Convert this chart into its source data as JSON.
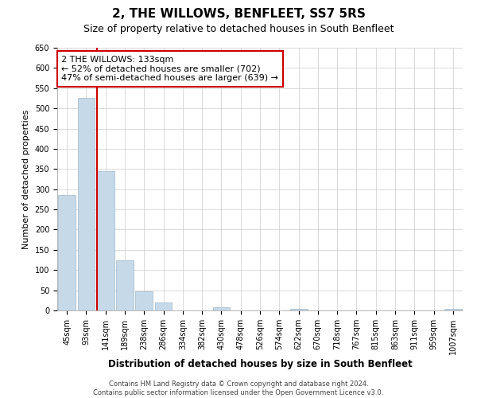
{
  "title": "2, THE WILLOWS, BENFLEET, SS7 5RS",
  "subtitle": "Size of property relative to detached houses in South Benfleet",
  "xlabel": "Distribution of detached houses by size in South Benfleet",
  "ylabel": "Number of detached properties",
  "footer_line1": "Contains HM Land Registry data © Crown copyright and database right 2024.",
  "footer_line2": "Contains public sector information licensed under the Open Government Licence v3.0.",
  "bar_labels": [
    "45sqm",
    "93sqm",
    "141sqm",
    "189sqm",
    "238sqm",
    "286sqm",
    "334sqm",
    "382sqm",
    "430sqm",
    "478sqm",
    "526sqm",
    "574sqm",
    "622sqm",
    "670sqm",
    "718sqm",
    "767sqm",
    "815sqm",
    "863sqm",
    "911sqm",
    "959sqm",
    "1007sqm"
  ],
  "bar_values": [
    285,
    525,
    345,
    125,
    48,
    20,
    0,
    0,
    8,
    0,
    0,
    0,
    3,
    0,
    0,
    0,
    0,
    0,
    0,
    0,
    3
  ],
  "bar_color": "#c5d9e8",
  "bar_edgecolor": "#a0b8cc",
  "property_line_label": "2 THE WILLOWS: 133sqm",
  "annotation_line2": "← 52% of detached houses are smaller (702)",
  "annotation_line3": "47% of semi-detached houses are larger (639) →",
  "annotation_box_facecolor": "#ffffff",
  "annotation_box_edgecolor": "#cc0000",
  "property_line_color": "#cc0000",
  "ylim": [
    0,
    650
  ],
  "yticks": [
    0,
    50,
    100,
    150,
    200,
    250,
    300,
    350,
    400,
    450,
    500,
    550,
    600,
    650
  ],
  "background_color": "#ffffff",
  "grid_color": "#cccccc",
  "title_fontsize": 11,
  "subtitle_fontsize": 9,
  "xlabel_fontsize": 8.5,
  "ylabel_fontsize": 8,
  "tick_fontsize": 7,
  "annotation_fontsize": 8,
  "footer_fontsize": 6
}
